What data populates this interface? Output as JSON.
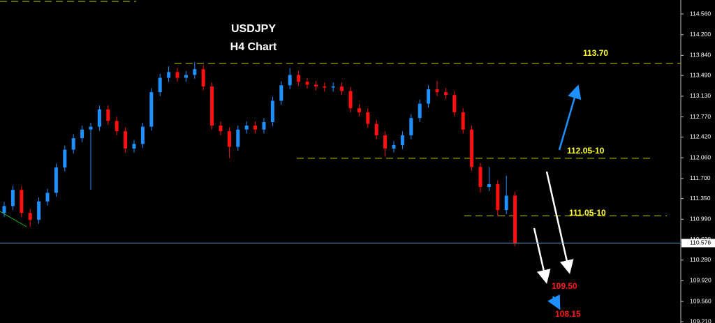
{
  "chart_data": {
    "type": "candlestick",
    "title": "USDJPY",
    "subtitle": "H4 Chart",
    "ylim": [
      109.186,
      114.803
    ],
    "yticks": [
      {
        "value": 114.56,
        "label": "114.560"
      },
      {
        "value": 114.2,
        "label": "114.200"
      },
      {
        "value": 113.84,
        "label": "113.840"
      },
      {
        "value": 113.49,
        "label": "113.490"
      },
      {
        "value": 113.13,
        "label": "113.130"
      },
      {
        "value": 112.77,
        "label": "112.770"
      },
      {
        "value": 112.42,
        "label": "112.420"
      },
      {
        "value": 112.06,
        "label": "112.060"
      },
      {
        "value": 111.7,
        "label": "111.700"
      },
      {
        "value": 111.35,
        "label": "111.350"
      },
      {
        "value": 110.99,
        "label": "110.990"
      },
      {
        "value": 110.63,
        "label": "110.630"
      },
      {
        "value": 110.28,
        "label": "110.280"
      },
      {
        "value": 109.92,
        "label": "109.920"
      },
      {
        "value": 109.56,
        "label": "109.560"
      },
      {
        "value": 109.21,
        "label": "109.210"
      }
    ],
    "up_color": "#1e90ff",
    "down_color": "#ff1010",
    "open": [
      111.1,
      111.22,
      111.5,
      111.1,
      110.98,
      111.3,
      111.45,
      111.89,
      112.2,
      112.4,
      112.55,
      112.6,
      112.9,
      112.7,
      112.52,
      112.22,
      112.3,
      112.6,
      113.2,
      113.45,
      113.55,
      113.45,
      113.5,
      113.6,
      113.3,
      112.62,
      112.52,
      112.25,
      112.55,
      112.62,
      112.55,
      112.68,
      113.05,
      113.32,
      113.5,
      113.38,
      113.33,
      113.3,
      113.28,
      113.3,
      113.22,
      112.92,
      112.85,
      112.65,
      112.45,
      112.22,
      112.28,
      112.45,
      112.75,
      113.0,
      113.25,
      113.2,
      113.15,
      112.85,
      112.55,
      111.9,
      111.55,
      111.6,
      111.15,
      111.4
    ],
    "high": [
      111.29,
      111.57,
      111.57,
      111.17,
      111.37,
      111.52,
      111.96,
      112.27,
      112.47,
      112.62,
      112.67,
      112.97,
      112.97,
      112.77,
      112.59,
      112.37,
      112.67,
      113.27,
      113.52,
      113.65,
      113.62,
      113.57,
      113.72,
      113.67,
      113.37,
      112.69,
      112.59,
      112.62,
      112.69,
      112.69,
      112.75,
      113.12,
      113.39,
      113.62,
      113.57,
      113.45,
      113.4,
      113.37,
      113.37,
      113.37,
      113.29,
      112.99,
      112.92,
      112.72,
      112.52,
      112.35,
      112.52,
      112.82,
      113.07,
      113.32,
      113.4,
      113.27,
      113.22,
      112.92,
      112.62,
      111.97,
      111.9,
      111.67,
      111.75,
      111.47
    ],
    "low": [
      111.03,
      111.15,
      111.03,
      110.86,
      110.91,
      111.23,
      111.38,
      111.82,
      112.13,
      112.33,
      111.5,
      112.53,
      112.63,
      112.45,
      112.15,
      112.15,
      112.23,
      112.53,
      113.13,
      113.38,
      113.38,
      113.38,
      113.43,
      113.23,
      112.55,
      112.45,
      112.05,
      112.18,
      112.48,
      112.48,
      112.48,
      112.61,
      112.98,
      113.25,
      113.31,
      113.26,
      113.23,
      113.21,
      113.21,
      113.15,
      112.85,
      112.78,
      112.58,
      112.38,
      112.08,
      112.15,
      112.21,
      112.38,
      112.68,
      112.93,
      113.13,
      113.08,
      112.78,
      112.48,
      111.83,
      111.45,
      111.48,
      111.05,
      111.08,
      110.52
    ],
    "close": [
      111.22,
      111.5,
      111.1,
      110.98,
      111.3,
      111.45,
      111.89,
      112.2,
      112.4,
      112.55,
      112.6,
      112.9,
      112.7,
      112.52,
      112.22,
      112.3,
      112.6,
      113.2,
      113.45,
      113.55,
      113.45,
      113.5,
      113.6,
      113.3,
      112.62,
      112.52,
      112.25,
      112.55,
      112.62,
      112.55,
      112.68,
      113.05,
      113.32,
      113.5,
      113.38,
      113.33,
      113.3,
      113.28,
      113.3,
      113.22,
      112.92,
      112.85,
      112.65,
      112.45,
      112.22,
      112.28,
      112.45,
      112.75,
      113.0,
      113.25,
      113.2,
      113.15,
      112.85,
      112.55,
      111.9,
      111.55,
      111.6,
      111.15,
      111.4,
      110.58
    ],
    "current_price": {
      "value": 110.576,
      "label": "110.576"
    },
    "levels": [
      {
        "value": 113.7,
        "label": "113.70"
      },
      {
        "value": 112.05,
        "label": "112.05-10"
      },
      {
        "value": 111.05,
        "label": "111.05-10"
      }
    ],
    "level_color": "#c8c800",
    "targets": [
      "109.50",
      "108.15"
    ]
  }
}
